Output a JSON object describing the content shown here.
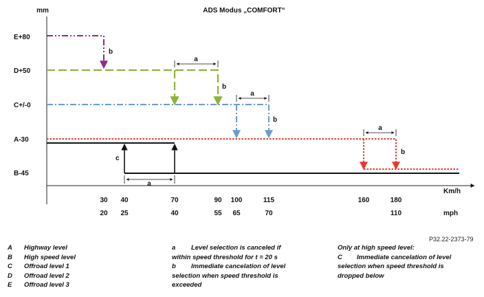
{
  "title": "ADS Modus „COMFORT“",
  "y_unit": "mm",
  "x_unit_kmh": "Km/h",
  "x_unit_mph": "mph",
  "levels": [
    {
      "key": "E",
      "label": "E+80",
      "color": "#8b2b86"
    },
    {
      "key": "D",
      "label": "D+50",
      "color": "#8db33a"
    },
    {
      "key": "C",
      "label": "C+/-0",
      "color": "#6a9ccf"
    },
    {
      "key": "A",
      "label": "A-30",
      "color": "#e53a2c"
    },
    {
      "key": "B",
      "label": "B-45",
      "color": "#111111"
    }
  ],
  "speed_ticks": [
    {
      "kmh": "30",
      "mph": "20"
    },
    {
      "kmh": "40",
      "mph": "25"
    },
    {
      "kmh": "70",
      "mph": "40"
    },
    {
      "kmh": "90",
      "mph": "55"
    },
    {
      "kmh": "100",
      "mph": "65"
    },
    {
      "kmh": "115",
      "mph": "70"
    },
    {
      "kmh": "160",
      "mph": ""
    },
    {
      "kmh": "180",
      "mph": "110"
    }
  ],
  "annotations": {
    "a": "a",
    "b": "b",
    "c": "c"
  },
  "reference": "P32.22-2373-79",
  "legend_levels": [
    {
      "key": "A",
      "text": "Highway level"
    },
    {
      "key": "B",
      "text": "High speed level"
    },
    {
      "key": "C",
      "text": "Offroad level 1"
    },
    {
      "key": "D",
      "text": "Offroad level 2"
    },
    {
      "key": "E",
      "text": "Offroad level 3"
    }
  ],
  "legend_notes": [
    {
      "key": "a",
      "text": "Level selection is canceled if",
      "cont": "within speed threshold for t = 20 s"
    },
    {
      "key": "b",
      "text": "Immediate cancelation of level",
      "cont": "selection when speed threshold is",
      "cont2": "exceeded"
    }
  ],
  "legend_high_speed": {
    "heading": "Only at high speed level:",
    "key": "C",
    "text": "Immediate cancelation of level",
    "cont": "selection when speed threshold is",
    "cont2": "dropped below"
  }
}
